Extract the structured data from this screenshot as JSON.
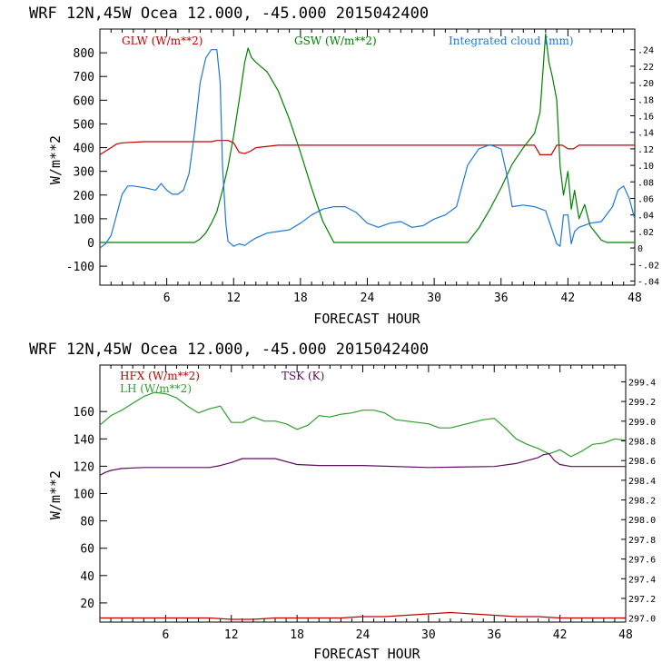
{
  "chart_data": [
    {
      "type": "line",
      "title": "WRF  12N,45W Ocea  12.000, -45.000  2015042400",
      "xlabel": "FORECAST HOUR",
      "ylabel": "W/m**2",
      "xlim": [
        0,
        48
      ],
      "ylim": [
        -180,
        900
      ],
      "y2lim": [
        -0.045,
        0.265
      ],
      "xticks": [
        6,
        12,
        18,
        24,
        30,
        36,
        42,
        48
      ],
      "xtick_labels": [
        "6",
        "12",
        "18",
        "24",
        "30",
        "36",
        "42",
        "48"
      ],
      "yticks": [
        -100,
        0,
        100,
        200,
        300,
        400,
        500,
        600,
        700,
        800
      ],
      "ytick_labels": [
        "-100",
        "0",
        "100",
        "200",
        "300",
        "400",
        "500",
        "600",
        "700",
        "800"
      ],
      "y2ticks": [
        -0.04,
        -0.02,
        0,
        0.02,
        0.04,
        0.06,
        0.08,
        0.1,
        0.12,
        0.14,
        0.16,
        0.18,
        0.2,
        0.22,
        0.24
      ],
      "y2tick_labels": [
        "-.04",
        "-.02",
        "0",
        ".02",
        ".04",
        ".06",
        ".08",
        ".10",
        ".12",
        ".14",
        ".16",
        ".18",
        ".20",
        ".22",
        ".24"
      ],
      "series": [
        {
          "name": "GLW (W/m**2)",
          "color": "#c00000",
          "axis": "left",
          "x": [
            0,
            0.5,
            1,
            1.5,
            2,
            4,
            8,
            10,
            10.5,
            11.5,
            12,
            12.5,
            13,
            13.5,
            14,
            16,
            20,
            24,
            30,
            36,
            39,
            39.5,
            40.5,
            41,
            41.5,
            42,
            42.5,
            43,
            43.5,
            44,
            48
          ],
          "y": [
            370,
            385,
            400,
            415,
            420,
            425,
            425,
            425,
            430,
            430,
            420,
            380,
            375,
            385,
            400,
            410,
            410,
            410,
            410,
            410,
            410,
            370,
            370,
            410,
            410,
            395,
            395,
            410,
            410,
            410,
            410
          ]
        },
        {
          "name": "GSW (W/m**2)",
          "color": "#008000",
          "axis": "left",
          "x": [
            0,
            8.5,
            9,
            9.5,
            10,
            10.5,
            11,
            11.5,
            12,
            12.5,
            13,
            13.3,
            13.6,
            14,
            14.5,
            15,
            15.5,
            16,
            17,
            18,
            19,
            20,
            21,
            33,
            34,
            35,
            36,
            37,
            38,
            38.5,
            39,
            39.5,
            40,
            40.3,
            40.6,
            41,
            41.3,
            41.6,
            42,
            42.3,
            42.6,
            43,
            43.5,
            44,
            44.5,
            45,
            45.5,
            46,
            48
          ],
          "y": [
            0,
            0,
            15,
            40,
            80,
            130,
            220,
            320,
            450,
            600,
            760,
            820,
            780,
            760,
            740,
            720,
            680,
            640,
            520,
            380,
            230,
            90,
            0,
            0,
            60,
            140,
            230,
            330,
            400,
            430,
            460,
            550,
            880,
            760,
            700,
            600,
            320,
            200,
            300,
            140,
            220,
            100,
            160,
            70,
            40,
            10,
            0,
            0,
            0
          ]
        },
        {
          "name": "Integrated cloud (mm)",
          "color": "#1e78d2",
          "axis": "right",
          "x": [
            0,
            0.5,
            1,
            1.5,
            2,
            2.5,
            3,
            4,
            5,
            5.5,
            6,
            6.5,
            7,
            7.5,
            8,
            8.5,
            9,
            9.5,
            10,
            10.5,
            10.8,
            11,
            11.3,
            11.5,
            12,
            12.5,
            13,
            13.5,
            14,
            15,
            16,
            17,
            18,
            19,
            20,
            21,
            22,
            23,
            24,
            25,
            26,
            27,
            28,
            29,
            30,
            31,
            32,
            33,
            34,
            35,
            36,
            36.5,
            37,
            38,
            39,
            40,
            40.5,
            41,
            41.3,
            41.6,
            42,
            42.3,
            42.6,
            43,
            44,
            45,
            46,
            46.5,
            47,
            47.5,
            48
          ],
          "y": [
            0,
            0.005,
            0.015,
            0.04,
            0.065,
            0.075,
            0.075,
            0.073,
            0.07,
            0.078,
            0.07,
            0.065,
            0.065,
            0.07,
            0.09,
            0.14,
            0.2,
            0.23,
            0.24,
            0.24,
            0.2,
            0.1,
            0.03,
            0.008,
            0.002,
            0.005,
            0.003,
            0.008,
            0.012,
            0.018,
            0.02,
            0.022,
            0.03,
            0.04,
            0.047,
            0.05,
            0.05,
            0.043,
            0.03,
            0.025,
            0.03,
            0.032,
            0.025,
            0.027,
            0.035,
            0.04,
            0.05,
            0.1,
            0.12,
            0.125,
            0.12,
            0.09,
            0.05,
            0.052,
            0.05,
            0.045,
            0.025,
            0.005,
            0.002,
            0.04,
            0.04,
            0.005,
            0.02,
            0.025,
            0.03,
            0.032,
            0.05,
            0.07,
            0.075,
            0.06,
            0.035
          ]
        }
      ]
    },
    {
      "type": "line",
      "title": "WRF  12N,45W Ocea  12.000, -45.000  2015042400",
      "xlabel": "FORECAST HOUR",
      "ylabel": "W/m**2",
      "xlim": [
        0,
        48
      ],
      "ylim": [
        6,
        194
      ],
      "y2lim": [
        296.96,
        299.57
      ],
      "xticks": [
        6,
        12,
        18,
        24,
        30,
        36,
        42,
        48
      ],
      "xtick_labels": [
        "6",
        "12",
        "18",
        "24",
        "30",
        "36",
        "42",
        "48"
      ],
      "yticks": [
        20,
        40,
        60,
        80,
        100,
        120,
        140,
        160
      ],
      "ytick_labels": [
        "20",
        "40",
        "60",
        "80",
        "100",
        "120",
        "140",
        "160"
      ],
      "y2ticks": [
        297.0,
        297.2,
        297.4,
        297.6,
        297.8,
        298.0,
        298.2,
        298.4,
        298.6,
        298.8,
        299.0,
        299.2,
        299.4
      ],
      "y2tick_labels": [
        "297.0",
        "297.2",
        "297.4",
        "297.6",
        "297.8",
        "298.0",
        "298.2",
        "298.4",
        "298.6",
        "298.8",
        "299.0",
        "299.2",
        "299.4"
      ],
      "series": [
        {
          "name": "HFX (W/m**2)",
          "color": "#c00000",
          "axis": "left",
          "x": [
            0,
            2,
            4,
            6,
            8,
            10,
            12,
            14,
            16,
            18,
            20,
            22,
            24,
            26,
            28,
            30,
            32,
            34,
            36,
            38,
            40,
            42,
            44,
            46,
            48
          ],
          "y": [
            9,
            9,
            9,
            9,
            9,
            9,
            8,
            8,
            9,
            9,
            9,
            9,
            10,
            10,
            11,
            12,
            13,
            12,
            11,
            10,
            10,
            9,
            9,
            9,
            9
          ]
        },
        {
          "name": "LH (W/m**2)",
          "color": "#2e9e2e",
          "axis": "left",
          "x": [
            0,
            1,
            2,
            3,
            4,
            5,
            6,
            7,
            8,
            9,
            10,
            11,
            12,
            13,
            14,
            15,
            16,
            17,
            18,
            19,
            20,
            21,
            22,
            23,
            24,
            25,
            26,
            27,
            28,
            29,
            30,
            31,
            32,
            33,
            34,
            35,
            36,
            37,
            38,
            39,
            40,
            41,
            42,
            43,
            44,
            45,
            46,
            47,
            48
          ],
          "y": [
            150,
            157,
            161,
            166,
            171,
            174,
            173,
            170,
            164,
            159,
            162,
            164,
            152,
            152,
            156,
            153,
            153,
            151,
            147,
            150,
            157,
            156,
            158,
            159,
            161,
            161,
            159,
            154,
            153,
            152,
            151,
            148,
            148,
            150,
            152,
            154,
            155,
            148,
            140,
            136,
            133,
            129,
            132,
            127,
            131,
            136,
            137,
            140,
            139
          ]
        },
        {
          "name": "TSK (K)",
          "color": "#5b0f5b",
          "axis": "right",
          "x": [
            0,
            0.5,
            1,
            2,
            4,
            6,
            8,
            10,
            11,
            12,
            13,
            14,
            16,
            18,
            20,
            24,
            30,
            36,
            38,
            39,
            40,
            40.5,
            41,
            41.5,
            42,
            43,
            44,
            48
          ],
          "y": [
            298.45,
            298.48,
            298.5,
            298.52,
            298.53,
            298.53,
            298.53,
            298.53,
            298.55,
            298.58,
            298.62,
            298.62,
            298.62,
            298.56,
            298.55,
            298.55,
            298.53,
            298.54,
            298.57,
            298.6,
            298.63,
            298.66,
            298.67,
            298.6,
            298.56,
            298.54,
            298.54,
            298.54
          ]
        }
      ]
    }
  ]
}
